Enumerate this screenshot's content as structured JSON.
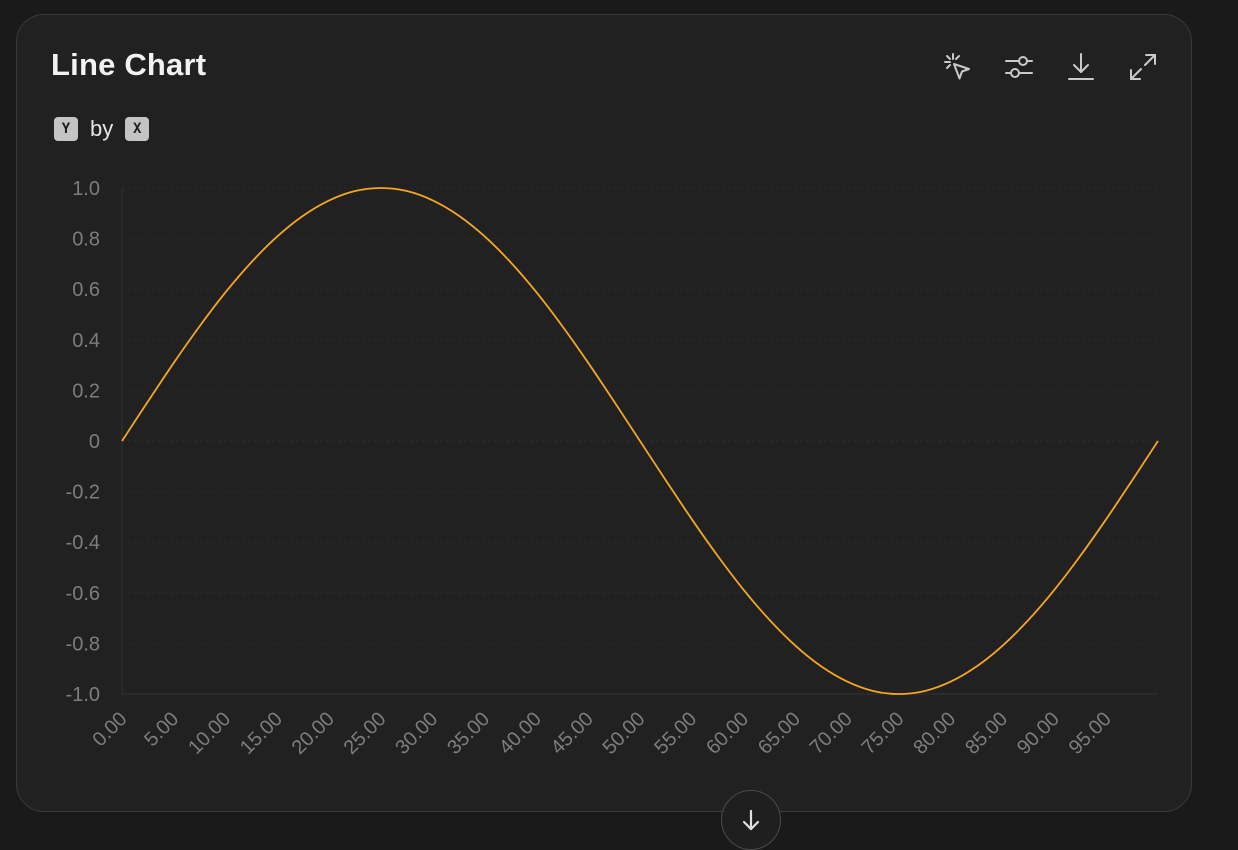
{
  "card": {
    "title": "Line Chart",
    "subtitle": {
      "y_key": "Y",
      "by_text": "by",
      "x_key": "X"
    },
    "toolbar": [
      {
        "name": "select-icon"
      },
      {
        "name": "sliders-icon"
      },
      {
        "name": "download-icon"
      },
      {
        "name": "expand-icon"
      }
    ]
  },
  "chart_data": {
    "type": "line",
    "title": "Line Chart",
    "xlabel": "",
    "ylabel": "",
    "xlim": [
      0,
      100
    ],
    "ylim": [
      -1.0,
      1.0
    ],
    "x_ticks": [
      "0.00",
      "5.00",
      "10.00",
      "15.00",
      "20.00",
      "25.00",
      "30.00",
      "35.00",
      "40.00",
      "45.00",
      "50.00",
      "55.00",
      "60.00",
      "65.00",
      "70.00",
      "75.00",
      "80.00",
      "85.00",
      "90.00",
      "95.00"
    ],
    "y_ticks": [
      "1.0",
      "0.8",
      "0.6",
      "0.4",
      "0.2",
      "0",
      "-0.2",
      "-0.4",
      "-0.6",
      "-0.8",
      "-1.0"
    ],
    "grid": true,
    "line_color": "#f5a623",
    "series": [
      {
        "x": [
          0,
          2.5,
          5,
          7.5,
          10,
          12.5,
          15,
          17.5,
          20,
          22.5,
          25,
          27.5,
          30,
          32.5,
          35,
          37.5,
          40,
          42.5,
          45,
          47.5,
          50,
          52.5,
          55,
          57.5,
          60,
          62.5,
          65,
          67.5,
          70,
          72.5,
          75,
          77.5,
          80,
          82.5,
          85,
          87.5,
          90,
          92.5,
          95,
          97.5,
          100
        ],
        "values": [
          0,
          0.156,
          0.309,
          0.454,
          0.588,
          0.707,
          0.809,
          0.891,
          0.951,
          0.988,
          1.0,
          0.988,
          0.951,
          0.891,
          0.809,
          0.707,
          0.588,
          0.454,
          0.309,
          0.156,
          0,
          -0.156,
          -0.309,
          -0.454,
          -0.588,
          -0.707,
          -0.809,
          -0.891,
          -0.951,
          -0.988,
          -1.0,
          -0.988,
          -0.951,
          -0.891,
          -0.809,
          -0.707,
          -0.588,
          -0.454,
          -0.309,
          -0.156,
          0
        ]
      }
    ]
  },
  "scroll_button": {
    "name": "arrow-down-icon"
  }
}
